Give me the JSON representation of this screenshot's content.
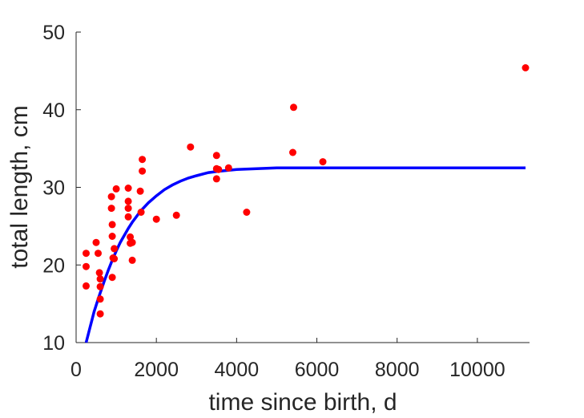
{
  "chart_data": {
    "type": "scatter",
    "xlabel": "time since birth, d",
    "ylabel": "total length, cm",
    "xlim": [
      0,
      11300
    ],
    "ylim": [
      10,
      50
    ],
    "xticks": [
      0,
      2000,
      4000,
      6000,
      8000,
      10000
    ],
    "yticks": [
      10,
      20,
      30,
      40,
      50
    ],
    "grid": false,
    "colors": {
      "points": "#ff0000",
      "fit": "#0000ff"
    },
    "series": [
      {
        "type": "scatter",
        "x": [
          250,
          250,
          250,
          500,
          550,
          580,
          600,
          600,
          600,
          600,
          880,
          880,
          900,
          900,
          900,
          920,
          950,
          950,
          1000,
          1300,
          1300,
          1300,
          1300,
          1350,
          1350,
          1400,
          1400,
          1600,
          1620,
          1650,
          1650,
          2000,
          2500,
          2850,
          3500,
          3500,
          3500,
          3550,
          3800,
          4250,
          5400,
          5420,
          6150,
          11200
        ],
        "y": [
          21.5,
          19.8,
          17.3,
          22.9,
          21.5,
          19.0,
          18.2,
          17.2,
          15.6,
          13.7,
          28.8,
          27.3,
          25.2,
          23.7,
          18.4,
          20.9,
          22.1,
          20.8,
          29.8,
          29.9,
          28.2,
          27.3,
          26.2,
          23.6,
          22.8,
          20.6,
          22.9,
          29.5,
          26.8,
          33.6,
          32.1,
          25.9,
          26.4,
          35.2,
          34.1,
          32.4,
          31.1,
          32.3,
          32.5,
          26.8,
          34.5,
          40.3,
          33.3,
          45.4
        ]
      },
      {
        "type": "line",
        "x": [
          250,
          300,
          350,
          400,
          450,
          500,
          550,
          600,
          700,
          800,
          900,
          1000,
          1100,
          1200,
          1300,
          1400,
          1500,
          1600,
          1800,
          2000,
          2200,
          2400,
          2600,
          2800,
          3000,
          3300,
          3600,
          4000,
          4500,
          5000,
          6000,
          7000,
          8000,
          9000,
          10000,
          11200
        ],
        "y": [
          10.0,
          11.0,
          12.0,
          13.0,
          14.0,
          14.8,
          15.6,
          16.4,
          17.9,
          19.3,
          20.6,
          21.8,
          22.9,
          23.8,
          24.7,
          25.5,
          26.2,
          26.9,
          28.0,
          28.9,
          29.7,
          30.3,
          30.8,
          31.2,
          31.5,
          31.9,
          32.1,
          32.3,
          32.4,
          32.5,
          32.5,
          32.5,
          32.5,
          32.5,
          32.5,
          32.5
        ]
      }
    ]
  }
}
